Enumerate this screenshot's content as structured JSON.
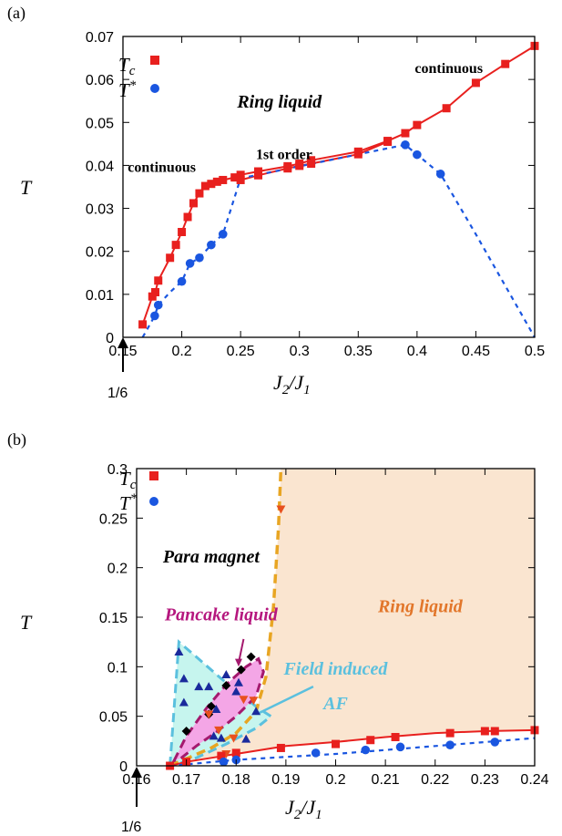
{
  "chart_data": [
    {
      "panel_label": "(a)",
      "type": "line",
      "xlabel": "J_2/J_1",
      "ylabel": "T",
      "xlim": [
        0.15,
        0.5
      ],
      "ylim": [
        0,
        0.07
      ],
      "xticks": [
        0.15,
        0.2,
        0.25,
        0.3,
        0.35,
        0.4,
        0.45,
        0.5
      ],
      "xtick_labels": [
        "0.15",
        "0.2",
        "0.25",
        "0.3",
        "0.35",
        "0.4",
        "0.45",
        "0.5"
      ],
      "yticks": [
        0,
        0.01,
        0.02,
        0.03,
        0.04,
        0.05,
        0.06,
        0.07
      ],
      "ytick_labels": [
        "0",
        "0.01",
        "0.02",
        "0.03",
        "0.04",
        "0.05",
        "0.06",
        "0.07"
      ],
      "legend": {
        "placement": "top-left",
        "entries": [
          "T_c",
          "T*"
        ]
      },
      "marker_label": "1/6",
      "marker_x": 0.1667,
      "annotations": [
        {
          "text": "Ring liquid",
          "x": 0.283,
          "y": 0.0535
        },
        {
          "text": "continuous",
          "x": 0.183,
          "y": 0.0385
        },
        {
          "text": "1st order",
          "x": 0.287,
          "y": 0.0415
        },
        {
          "text": "continuous",
          "x": 0.427,
          "y": 0.0615
        }
      ],
      "series": [
        {
          "name": "T_c",
          "color": "#e8201e",
          "marker": "square",
          "line": "solid",
          "x": [
            0.1667,
            0.175,
            0.1775,
            0.18,
            0.19,
            0.195,
            0.2,
            0.205,
            0.21,
            0.215,
            0.22,
            0.225,
            0.23,
            0.235,
            0.245,
            0.25,
            0.265,
            0.29,
            0.3,
            0.31,
            0.35,
            0.375,
            0.39,
            0.4,
            0.425,
            0.45,
            0.475,
            0.5
          ],
          "y": [
            0.003,
            0.0095,
            0.0105,
            0.0132,
            0.0185,
            0.0215,
            0.0245,
            0.028,
            0.0312,
            0.0335,
            0.0352,
            0.0357,
            0.0362,
            0.0366,
            0.0372,
            0.0378,
            0.0386,
            0.0398,
            0.0404,
            0.0412,
            0.0432,
            0.0457,
            0.0475,
            0.0494,
            0.0533,
            0.0592,
            0.0636,
            0.0678
          ]
        },
        {
          "name": "T_c",
          "color": "#e8201e",
          "marker": "square",
          "line": "solid",
          "x": [
            0.25,
            0.265,
            0.29,
            0.3,
            0.31,
            0.35,
            0.375
          ],
          "y": [
            0.0366,
            0.0377,
            0.0393,
            0.0399,
            0.0404,
            0.0426,
            0.0455
          ]
        },
        {
          "name": "T*",
          "color": "#1a56e0",
          "marker": "circle",
          "line": "dashed",
          "x": [
            0.1667,
            0.177,
            0.18,
            0.19,
            0.2,
            0.207,
            0.215,
            0.22,
            0.225,
            0.235,
            0.25,
            0.39,
            0.4,
            0.42,
            0.45,
            0.5
          ],
          "y": [
            0.0,
            0.005,
            0.0075,
            0.0105,
            0.013,
            0.0172,
            0.0185,
            0.02,
            0.0215,
            0.024,
            0.037,
            0.0448,
            0.0425,
            0.038,
            0.024,
            0.0
          ],
          "markers_x": [
            0.177,
            0.18,
            0.2,
            0.207,
            0.215,
            0.225,
            0.235,
            0.39,
            0.4,
            0.42
          ],
          "markers_y": [
            0.005,
            0.0075,
            0.013,
            0.0172,
            0.0185,
            0.0215,
            0.024,
            0.0448,
            0.0425,
            0.038
          ]
        }
      ]
    },
    {
      "panel_label": "(b)",
      "type": "line",
      "xlabel": "J_2/J_1",
      "ylabel": "T",
      "xlim": [
        0.16,
        0.24
      ],
      "ylim": [
        0,
        0.3
      ],
      "xticks": [
        0.16,
        0.17,
        0.18,
        0.19,
        0.2,
        0.21,
        0.22,
        0.23,
        0.24
      ],
      "xtick_labels": [
        "0.16",
        "0.17",
        "0.18",
        "0.19",
        "0.2",
        "0.21",
        "0.22",
        "0.23",
        "0.24"
      ],
      "yticks": [
        0,
        0.05,
        0.1,
        0.15,
        0.2,
        0.25,
        0.3
      ],
      "ytick_labels": [
        "0",
        "0.05",
        "0.1",
        "0.15",
        "0.2",
        "0.25",
        "0.3"
      ],
      "legend": {
        "placement": "top-left",
        "entries": [
          "T_c",
          "T*"
        ]
      },
      "marker_label": "1/6",
      "marker_x": 0.1667,
      "annotations": [
        {
          "text": "Para magnet",
          "x": 0.175,
          "y": 0.205,
          "color": "#000000"
        },
        {
          "text": "Ring liquid",
          "x": 0.217,
          "y": 0.155,
          "color": "#e2762a"
        },
        {
          "text": "Pancake liquid",
          "x": 0.177,
          "y": 0.147,
          "color": "#b5177e"
        },
        {
          "text": "Field induced",
          "x": 0.2,
          "y": 0.092,
          "color": "#5bc0de"
        },
        {
          "text": "AF",
          "x": 0.2,
          "y": 0.057,
          "color": "#5bc0de"
        }
      ],
      "regions": [
        {
          "name": "Ring liquid",
          "color": "#fae5d0"
        },
        {
          "name": "Pancake liquid",
          "color": "#f4a6e6"
        },
        {
          "name": "Field induced AF",
          "color": "#c6f5ee"
        }
      ],
      "series": [
        {
          "name": "T_c",
          "color": "#e8201e",
          "marker": "square",
          "line": "solid",
          "x": [
            0.1667,
            0.17,
            0.175,
            0.18,
            0.185,
            0.19,
            0.2,
            0.21,
            0.22,
            0.23,
            0.24
          ],
          "y": [
            0.0,
            0.004,
            0.008,
            0.012,
            0.016,
            0.02,
            0.024,
            0.029,
            0.033,
            0.035,
            0.036
          ],
          "markers_x": [
            0.1667,
            0.17,
            0.177,
            0.18,
            0.189,
            0.2,
            0.207,
            0.212,
            0.223,
            0.23,
            0.232,
            0.24
          ],
          "markers_y": [
            0.0,
            0.004,
            0.01,
            0.013,
            0.018,
            0.022,
            0.026,
            0.029,
            0.033,
            0.035,
            0.035,
            0.036
          ]
        },
        {
          "name": "T*",
          "color": "#1a56e0",
          "marker": "circle",
          "line": "dashed",
          "x": [
            0.1667,
            0.18,
            0.2,
            0.22,
            0.24
          ],
          "y": [
            0.0,
            0.006,
            0.012,
            0.02,
            0.028
          ],
          "markers_x": [
            0.1775,
            0.18,
            0.196,
            0.206,
            0.213,
            0.223,
            0.232
          ],
          "markers_y": [
            0.004,
            0.006,
            0.013,
            0.016,
            0.019,
            0.021,
            0.024
          ]
        }
      ],
      "extra_points": {
        "black_diamonds_x": [
          0.17,
          0.175,
          0.178,
          0.181,
          0.183,
          0.1745
        ],
        "black_diamonds_y": [
          0.035,
          0.06,
          0.081,
          0.097,
          0.11,
          0.052
        ],
        "navy_triangles_x": [
          0.1685,
          0.1695,
          0.1695,
          0.1725,
          0.1745,
          0.176,
          0.177,
          0.178,
          0.18,
          0.182,
          0.184,
          0.1755,
          0.1805
        ],
        "navy_triangles_y": [
          0.115,
          0.088,
          0.064,
          0.08,
          0.08,
          0.057,
          0.028,
          0.092,
          0.075,
          0.027,
          0.055,
          0.03,
          0.084
        ],
        "orange_triangles_x": [
          0.1745,
          0.1765,
          0.178,
          0.1795,
          0.1815,
          0.1835,
          0.189
        ],
        "orange_triangles_y": [
          0.052,
          0.036,
          0.012,
          0.028,
          0.067,
          0.066,
          0.259
        ]
      }
    }
  ]
}
